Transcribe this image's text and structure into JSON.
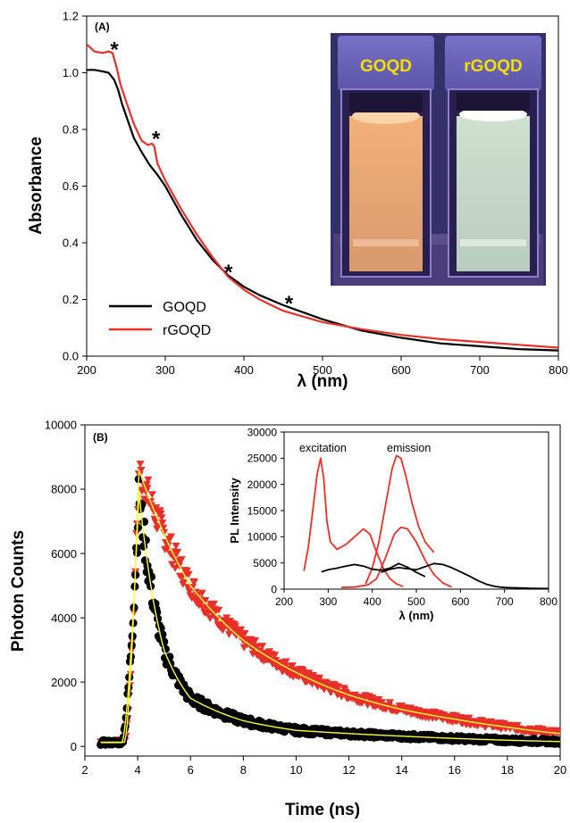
{
  "colors": {
    "black": "#000000",
    "red": "#e8302a",
    "yellow": "#ffff33",
    "inset_bg": "#34306a"
  },
  "chart_data": [
    {
      "panel_label": "(A)",
      "type": "line",
      "xlabel": "λ (nm)",
      "ylabel": "Absorbance",
      "xlim": [
        200,
        800
      ],
      "ylim": [
        0,
        1.2
      ],
      "xticks": [
        "200",
        "300",
        "400",
        "500",
        "600",
        "700",
        "800"
      ],
      "yticks": [
        "0.0",
        "0.2",
        "0.4",
        "0.6",
        "0.8",
        "1.0",
        "1.2"
      ],
      "legend_position": "bottom-left",
      "series": [
        {
          "name": "GOQD",
          "color": "#000000",
          "x": [
            200,
            210,
            220,
            228,
            235,
            240,
            245,
            250,
            260,
            270,
            280,
            290,
            300,
            320,
            340,
            360,
            380,
            400,
            420,
            450,
            500,
            550,
            600,
            650,
            700,
            750,
            800
          ],
          "y": [
            1.01,
            1.01,
            1.005,
            1.0,
            0.975,
            0.94,
            0.89,
            0.85,
            0.77,
            0.72,
            0.675,
            0.64,
            0.6,
            0.5,
            0.41,
            0.34,
            0.285,
            0.245,
            0.215,
            0.18,
            0.13,
            0.09,
            0.065,
            0.045,
            0.035,
            0.025,
            0.02
          ]
        },
        {
          "name": "rGOQD",
          "color": "#e8302a",
          "x": [
            200,
            210,
            220,
            228,
            233,
            238,
            243,
            250,
            260,
            270,
            278,
            283,
            286,
            290,
            300,
            320,
            340,
            360,
            380,
            400,
            420,
            450,
            500,
            550,
            600,
            650,
            700,
            750,
            800
          ],
          "y": [
            1.1,
            1.075,
            1.07,
            1.075,
            1.07,
            1.02,
            0.96,
            0.9,
            0.82,
            0.76,
            0.745,
            0.75,
            0.74,
            0.68,
            0.62,
            0.52,
            0.43,
            0.35,
            0.28,
            0.235,
            0.2,
            0.16,
            0.12,
            0.095,
            0.075,
            0.06,
            0.05,
            0.04,
            0.03
          ]
        }
      ],
      "annotations": [
        {
          "text": "*",
          "x": 233,
          "y": 1.075
        },
        {
          "text": "*",
          "x": 286,
          "y": 0.76
        },
        {
          "text": "*",
          "x": 378,
          "y": 0.29
        },
        {
          "text": "*",
          "x": 455,
          "y": 0.18
        }
      ],
      "inset_photo": {
        "labels": [
          "GOQD",
          "rGOQD"
        ]
      }
    },
    {
      "panel_label": "(B)",
      "type": "scatter",
      "xlabel": "Time (ns)",
      "ylabel": "Photon Counts",
      "xlim": [
        2,
        20
      ],
      "ylim": [
        -300,
        10000
      ],
      "xticks": [
        "2",
        "4",
        "6",
        "8",
        "10",
        "12",
        "14",
        "16",
        "18",
        "20"
      ],
      "yticks": [
        "0",
        "2000",
        "4000",
        "6000",
        "8000",
        "10000"
      ],
      "series": [
        {
          "name": "GOQD",
          "color": "#000000",
          "peak_x": 4.05,
          "peak_y": 7900,
          "rise_start": 3.4,
          "baseline": 120,
          "decay": [
            {
              "x": 4.05,
              "y": 7900
            },
            {
              "x": 5,
              "y": 3000
            },
            {
              "x": 6,
              "y": 1500
            },
            {
              "x": 8,
              "y": 800
            },
            {
              "x": 10,
              "y": 500
            },
            {
              "x": 14,
              "y": 320
            },
            {
              "x": 20,
              "y": 150
            }
          ]
        },
        {
          "name": "rGOQD",
          "color": "#e8302a",
          "peak_x": 4.05,
          "peak_y": 8600,
          "rise_start": 3.5,
          "baseline": 130,
          "decay": [
            {
              "x": 4.05,
              "y": 8600
            },
            {
              "x": 6,
              "y": 5000
            },
            {
              "x": 8,
              "y": 3300
            },
            {
              "x": 10,
              "y": 2300
            },
            {
              "x": 12,
              "y": 1600
            },
            {
              "x": 14,
              "y": 1150
            },
            {
              "x": 16,
              "y": 850
            },
            {
              "x": 18,
              "y": 600
            },
            {
              "x": 20,
              "y": 400
            }
          ]
        }
      ],
      "fit_color": "#ffff33",
      "inset": {
        "type": "line",
        "xlabel": "λ (nm)",
        "ylabel": "PL Intensity",
        "xlim": [
          200,
          800
        ],
        "ylim": [
          0,
          30000
        ],
        "xticks": [
          "200",
          "300",
          "400",
          "500",
          "600",
          "700",
          "800"
        ],
        "yticks": [
          "0",
          "5000",
          "10000",
          "15000",
          "20000",
          "25000",
          "30000"
        ],
        "annotations": [
          "excitation",
          "emission"
        ],
        "series": [
          {
            "label": "rGOQD excitation",
            "color": "#e8302a",
            "x": [
              245,
              255,
              265,
              275,
              283,
              290,
              297,
              305,
              320,
              340,
              360,
              380,
              395,
              410,
              425,
              440,
              455,
              470
            ],
            "y": [
              3500,
              8000,
              15000,
              22000,
              25000,
              21000,
              13000,
              9000,
              7600,
              8500,
              10000,
              11500,
              10500,
              7000,
              4000,
              2000,
              1000,
              500
            ]
          },
          {
            "label": "rGOQD emission (high)",
            "color": "#e8302a",
            "x": [
              385,
              400,
              415,
              430,
              445,
              455,
              465,
              475,
              490,
              505,
              520,
              540
            ],
            "y": [
              1000,
              4000,
              9000,
              16000,
              23000,
              25500,
              25000,
              22000,
              16500,
              12000,
              9000,
              7000
            ]
          },
          {
            "label": "rGOQD emission (low)",
            "color": "#e8302a",
            "x": [
              330,
              360,
              390,
              410,
              430,
              450,
              465,
              480,
              500,
              520,
              540,
              560,
              580
            ],
            "y": [
              300,
              400,
              800,
              2000,
              6000,
              10500,
              11800,
              11500,
              9000,
              5500,
              2800,
              1200,
              400
            ]
          },
          {
            "label": "GOQD excitation",
            "color": "#000000",
            "x": [
              285,
              300,
              320,
              340,
              360,
              380,
              400,
              420,
              440,
              460,
              480,
              500,
              520
            ],
            "y": [
              3300,
              3700,
              4000,
              4400,
              4700,
              4400,
              3800,
              3600,
              4000,
              4900,
              4200,
              3200,
              2400
            ]
          },
          {
            "label": "GOQD emission",
            "color": "#000000",
            "x": [
              420,
              440,
              460,
              480,
              500,
              520,
              540,
              560,
              580,
              600,
              620,
              640,
              660,
              680,
              700,
              720,
              740,
              760,
              780,
              800
            ],
            "y": [
              3200,
              3800,
              4100,
              3900,
              3700,
              4300,
              4900,
              4700,
              4100,
              3300,
              2500,
              1600,
              900,
              500,
              300,
              250,
              200,
              150,
              120,
              100
            ]
          }
        ]
      }
    }
  ]
}
